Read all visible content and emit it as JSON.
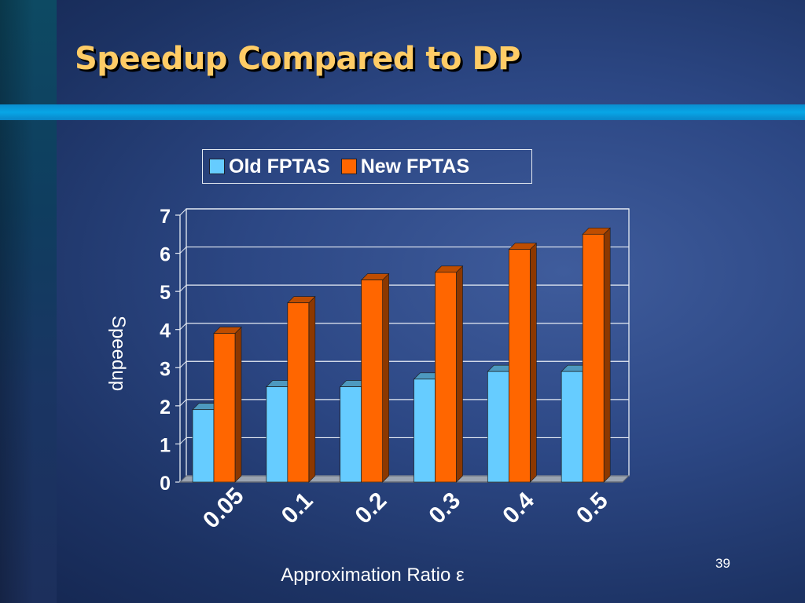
{
  "slide": {
    "title": "Speedup Compared to DP",
    "number": "39"
  },
  "colors": {
    "title": "#ffcc66",
    "old_fptas": "#66ccff",
    "new_fptas": "#ff6600"
  },
  "chart_data": {
    "type": "bar",
    "style": "3d-clustered",
    "title": "",
    "xlabel": "Approximation Ratio ε",
    "ylabel": "Speedup",
    "categories": [
      "0.05",
      "0.1",
      "0.2",
      "0.3",
      "0.4",
      "0.5"
    ],
    "series": [
      {
        "name": "Old FPTAS",
        "values": [
          1.9,
          2.5,
          2.5,
          2.7,
          2.9,
          2.9
        ]
      },
      {
        "name": "New FPTAS",
        "values": [
          3.9,
          4.7,
          5.3,
          5.5,
          6.1,
          6.5
        ]
      }
    ],
    "ylim": [
      0,
      7
    ],
    "yticks": [
      "0",
      "1",
      "2",
      "3",
      "4",
      "5",
      "6",
      "7"
    ],
    "grid": true,
    "legend_position": "top"
  }
}
